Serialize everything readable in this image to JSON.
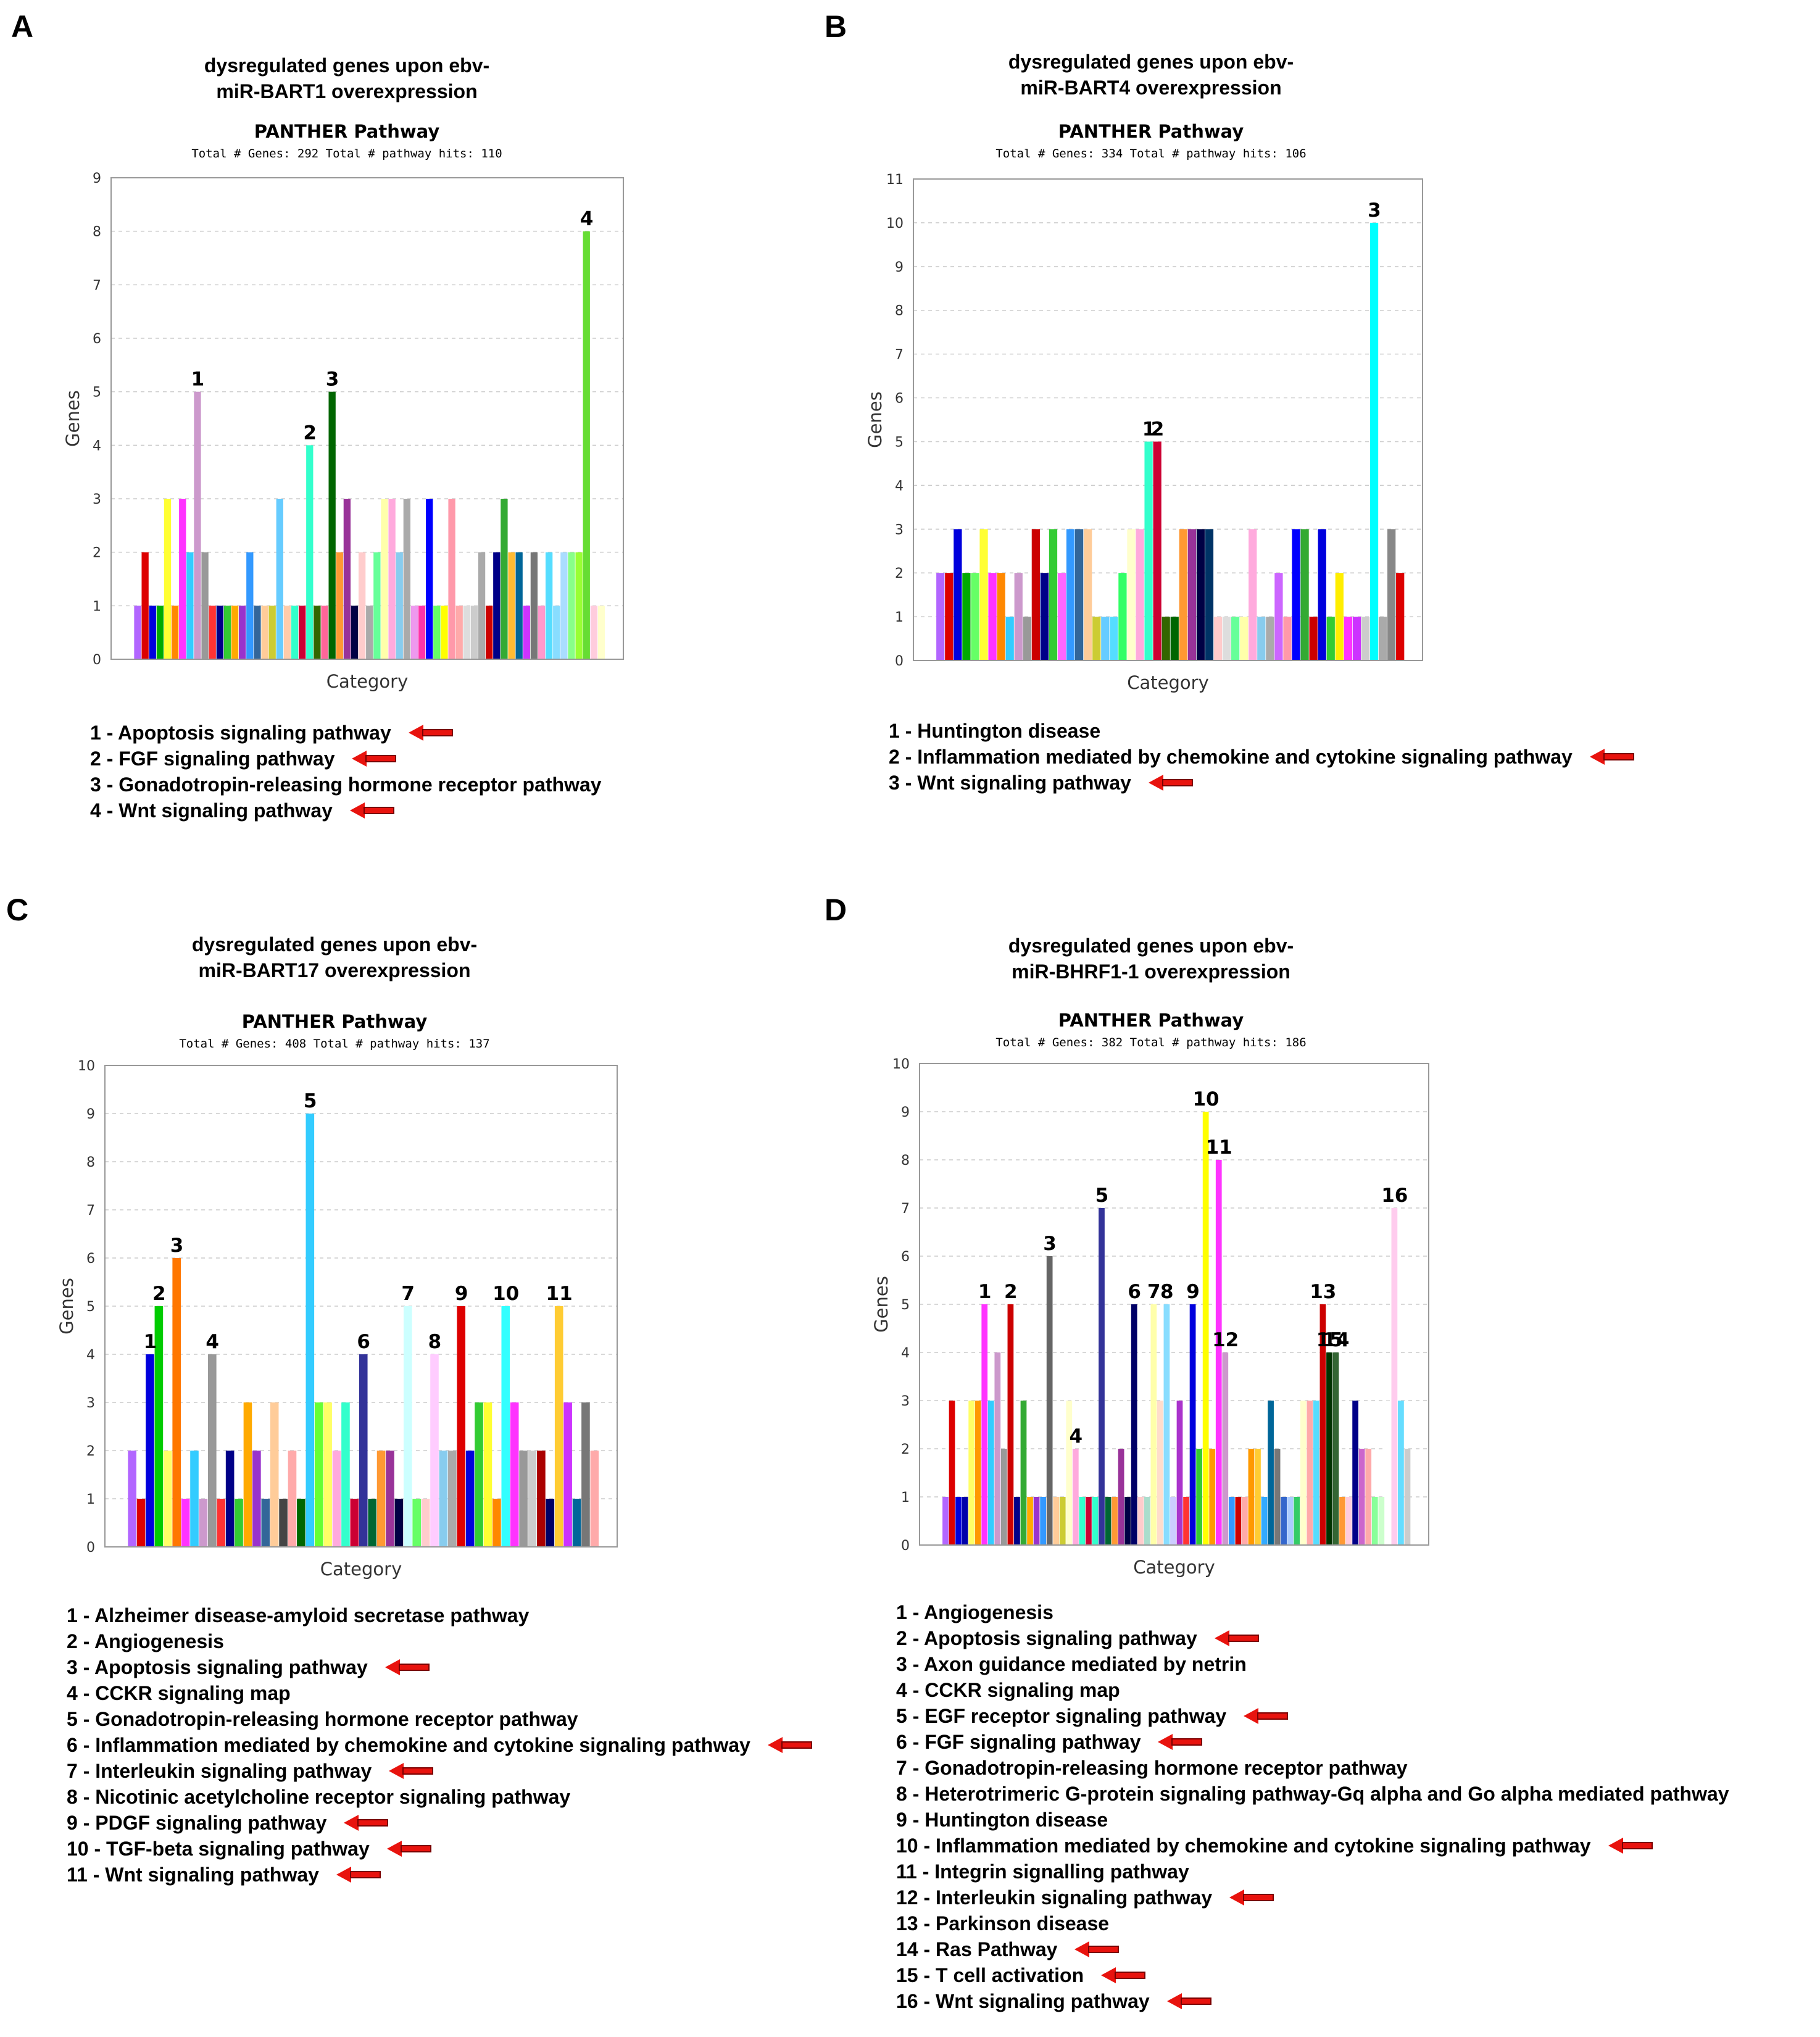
{
  "chart_data": [
    {
      "type": "bar",
      "panel": "A",
      "title_line1": "dysregulated genes upon ebv-",
      "title_line2": "miR-BART1 overexpression",
      "chart_title": "PANTHER Pathway",
      "subtitle": "Total # Genes: 292    Total # pathway hits: 110",
      "xlabel": "Category",
      "ylabel": "Genes",
      "ylim": [
        0,
        9
      ],
      "yticks": [
        "0",
        "1",
        "2",
        "3",
        "4",
        "5",
        "6",
        "7",
        "8",
        "9"
      ],
      "values": [
        1,
        2,
        1,
        1,
        3,
        1,
        3,
        2,
        5,
        2,
        1,
        1,
        1,
        1,
        1,
        2,
        1,
        1,
        1,
        3,
        1,
        1,
        1,
        4,
        1,
        1,
        5,
        2,
        3,
        1,
        2,
        1,
        2,
        3,
        3,
        2,
        3,
        1,
        1,
        3,
        1,
        1,
        3,
        1,
        1,
        1,
        2,
        1,
        2,
        3,
        2,
        2,
        1,
        2,
        1,
        2,
        1,
        2,
        2,
        2,
        8,
        1,
        1
      ],
      "colors": [
        "#b266ff",
        "#dd0000",
        "#0000dd",
        "#00aa00",
        "#ffff33",
        "#ff8800",
        "#ff33ff",
        "#33ccff",
        "#cc99cc",
        "#999999",
        "#ff3333",
        "#000088",
        "#33cc33",
        "#ffaa00",
        "#9933cc",
        "#3399ff",
        "#336699",
        "#ffcc99",
        "#cccc33",
        "#66ccff",
        "#ffccaa",
        "#33ffcc",
        "#cc0033",
        "#33ffcc",
        "#336600",
        "#ff6699",
        "#006600",
        "#ff9933",
        "#993399",
        "#000044",
        "#ffcccc",
        "#aaaaaa",
        "#66ff99",
        "#ffffaa",
        "#ffaadd",
        "#88ccee",
        "#aaaaaa",
        "#ee99ee",
        "#ff33aa",
        "#0000ff",
        "#66ff66",
        "#ffff00",
        "#ff99aa",
        "#ffaaaa",
        "#dddddd",
        "#cccccc",
        "#aaaaaa",
        "#cc0000",
        "#000088",
        "#33aa33",
        "#ffbb33",
        "#006699",
        "#cc33ff",
        "#777777",
        "#ff99cc",
        "#55ddff",
        "#88ddff",
        "#aaddff",
        "#88ff88",
        "#99ff33",
        "#66dd33",
        "#ffccdd",
        "#ffffcc"
      ],
      "annotations": [
        {
          "label": "1",
          "bar": 8
        },
        {
          "label": "2",
          "bar": 23
        },
        {
          "label": "3",
          "bar": 26
        },
        {
          "label": "4",
          "bar": 60
        }
      ],
      "legend": [
        {
          "text": "1 - Apoptosis signaling pathway",
          "arrow": true
        },
        {
          "text": "2 - FGF signaling pathway",
          "arrow": true
        },
        {
          "text": "3 - Gonadotropin-releasing hormone receptor pathway",
          "arrow": false
        },
        {
          "text": "4 - Wnt signaling pathway",
          "arrow": true
        }
      ]
    },
    {
      "type": "bar",
      "panel": "B",
      "title_line1": "dysregulated genes upon ebv-",
      "title_line2": "miR-BART4 overexpression",
      "chart_title": "PANTHER Pathway",
      "subtitle": "Total # Genes: 334    Total # pathway hits: 106",
      "xlabel": "Category",
      "ylabel": "Genes",
      "ylim": [
        0,
        11
      ],
      "yticks": [
        "0",
        "1",
        "2",
        "3",
        "4",
        "5",
        "6",
        "7",
        "8",
        "9",
        "10",
        "11"
      ],
      "values": [
        2,
        2,
        3,
        2,
        2,
        3,
        2,
        2,
        1,
        2,
        1,
        3,
        2,
        3,
        2,
        3,
        3,
        3,
        1,
        1,
        1,
        2,
        3,
        3,
        5,
        5,
        1,
        1,
        3,
        3,
        3,
        3,
        1,
        1,
        1,
        1,
        3,
        1,
        1,
        2,
        1,
        3,
        3,
        1,
        3,
        1,
        2,
        1,
        1,
        1,
        10,
        1,
        3,
        2
      ],
      "colors": [
        "#b266ff",
        "#dd0000",
        "#0000dd",
        "#00aa00",
        "#66ff66",
        "#ffff33",
        "#ff33ff",
        "#ff8800",
        "#33ccff",
        "#cc99cc",
        "#999999",
        "#cc0000",
        "#000088",
        "#33cc33",
        "#ff66ff",
        "#3399ff",
        "#336699",
        "#ffcc99",
        "#cccc33",
        "#66ccff",
        "#55ddff",
        "#33ff66",
        "#ffffcc",
        "#ffaadd",
        "#33ffcc",
        "#cc0033",
        "#336600",
        "#006600",
        "#ff9933",
        "#993399",
        "#000044",
        "#003366",
        "#ffcccc",
        "#dddddd",
        "#66ff99",
        "#ffffaa",
        "#ffaadd",
        "#88ccee",
        "#aaaaaa",
        "#cc66ff",
        "#ff99aa",
        "#0000ff",
        "#33aa33",
        "#cc0000",
        "#0000dd",
        "#33cc33",
        "#ffee00",
        "#ff33ff",
        "#cc33ff",
        "#cccccc",
        "#00ffff",
        "#aaaaaa",
        "#888888",
        "#dd0000"
      ],
      "annotations": [
        {
          "label": "1",
          "bar": 24
        },
        {
          "label": "2",
          "bar": 25
        },
        {
          "label": "3",
          "bar": 50
        }
      ],
      "legend": [
        {
          "text": "1 - Huntington disease",
          "arrow": false
        },
        {
          "text": "2 - Inflammation mediated by chemokine and cytokine signaling pathway",
          "arrow": true
        },
        {
          "text": "3 - Wnt signaling pathway",
          "arrow": true
        }
      ]
    },
    {
      "type": "bar",
      "panel": "C",
      "title_line1": "dysregulated genes upon ebv-",
      "title_line2": "miR-BART17 overexpression",
      "chart_title": "PANTHER Pathway",
      "subtitle": "Total # Genes: 408    Total # pathway hits: 137",
      "xlabel": "Category",
      "ylabel": "Genes",
      "ylim": [
        0,
        10
      ],
      "yticks": [
        "0",
        "1",
        "2",
        "3",
        "4",
        "5",
        "6",
        "7",
        "8",
        "9",
        "10"
      ],
      "values": [
        2,
        1,
        4,
        5,
        2,
        6,
        1,
        2,
        1,
        4,
        1,
        2,
        1,
        3,
        2,
        1,
        3,
        1,
        2,
        1,
        9,
        3,
        3,
        2,
        3,
        1,
        4,
        1,
        2,
        2,
        1,
        5,
        1,
        1,
        4,
        2,
        2,
        5,
        2,
        3,
        3,
        1,
        5,
        3,
        2,
        2,
        2,
        1,
        5,
        3,
        1,
        3,
        2
      ],
      "colors": [
        "#b266ff",
        "#dd0000",
        "#0000dd",
        "#00cc00",
        "#ffff66",
        "#ff7700",
        "#ff33ff",
        "#33ccff",
        "#cc99cc",
        "#999999",
        "#ff3333",
        "#000088",
        "#33cc33",
        "#ffaa00",
        "#9933cc",
        "#336699",
        "#ffcc99",
        "#444444",
        "#ffaaaa",
        "#006600",
        "#33ccff",
        "#66ff33",
        "#ffff66",
        "#ffaadd",
        "#33ffcc",
        "#cc0033",
        "#333399",
        "#006633",
        "#ff9933",
        "#993399",
        "#000044",
        "#ccffff",
        "#66ff66",
        "#ffcccc",
        "#ffccff",
        "#88ccee",
        "#aaaaaa",
        "#dd0000",
        "#0000dd",
        "#33cc33",
        "#ffff33",
        "#ff8800",
        "#33ffff",
        "#ff33ff",
        "#999999",
        "#cccccc",
        "#aa0000",
        "#000066",
        "#ffcc33",
        "#cc33ff",
        "#006699",
        "#777777",
        "#ffaaaa"
      ],
      "annotations": [
        {
          "label": "1",
          "bar": 2
        },
        {
          "label": "2",
          "bar": 3
        },
        {
          "label": "3",
          "bar": 5
        },
        {
          "label": "4",
          "bar": 9
        },
        {
          "label": "5",
          "bar": 20
        },
        {
          "label": "6",
          "bar": 26
        },
        {
          "label": "7",
          "bar": 31
        },
        {
          "label": "8",
          "bar": 34
        },
        {
          "label": "9",
          "bar": 37
        },
        {
          "label": "10",
          "bar": 42
        },
        {
          "label": "11",
          "bar": 48
        }
      ],
      "legend": [
        {
          "text": "1 - Alzheimer disease-amyloid secretase pathway",
          "arrow": false
        },
        {
          "text": "2 - Angiogenesis",
          "arrow": false
        },
        {
          "text": "3 - Apoptosis signaling pathway",
          "arrow": true
        },
        {
          "text": "4 - CCKR signaling map",
          "arrow": false
        },
        {
          "text": "5 - Gonadotropin-releasing hormone receptor pathway",
          "arrow": false
        },
        {
          "text": "6 - Inflammation mediated by chemokine and cytokine signaling pathway",
          "arrow": true
        },
        {
          "text": "7 - Interleukin signaling pathway",
          "arrow": true
        },
        {
          "text": "8 - Nicotinic acetylcholine receptor signaling pathway",
          "arrow": false
        },
        {
          "text": "9 - PDGF signaling pathway",
          "arrow": true
        },
        {
          "text": "10 - TGF-beta signaling pathway",
          "arrow": true
        },
        {
          "text": "11 - Wnt signaling pathway",
          "arrow": true
        }
      ]
    },
    {
      "type": "bar",
      "panel": "D",
      "title_line1": "dysregulated genes upon ebv-",
      "title_line2": "miR-BHRF1-1 overexpression",
      "chart_title": "PANTHER Pathway",
      "subtitle": "Total # Genes: 382    Total # pathway hits: 186",
      "xlabel": "Category",
      "ylabel": "Genes",
      "ylim": [
        0,
        10
      ],
      "yticks": [
        "0",
        "1",
        "2",
        "3",
        "4",
        "5",
        "6",
        "7",
        "8",
        "9",
        "10"
      ],
      "values": [
        1,
        3,
        1,
        1,
        3,
        3,
        5,
        3,
        4,
        2,
        5,
        1,
        3,
        1,
        1,
        1,
        6,
        1,
        1,
        3,
        2,
        1,
        1,
        1,
        7,
        1,
        1,
        2,
        1,
        5,
        1,
        1,
        5,
        3,
        5,
        1,
        3,
        1,
        5,
        2,
        9,
        2,
        8,
        4,
        1,
        1,
        1,
        2,
        2,
        1,
        3,
        2,
        1,
        1,
        1,
        3,
        3,
        3,
        5,
        4,
        4,
        1,
        1,
        3,
        2,
        2,
        1,
        1,
        3,
        7,
        3,
        2
      ],
      "colors": [
        "#b266ff",
        "#dd0000",
        "#0000dd",
        "#0000aa",
        "#ffff66",
        "#ff9900",
        "#ff33ff",
        "#33ccff",
        "#cc99cc",
        "#999999",
        "#cc0000",
        "#000088",
        "#33aa33",
        "#ffaa00",
        "#9933cc",
        "#3399ff",
        "#666666",
        "#ffcc99",
        "#cccc33",
        "#ffffcc",
        "#ffaadd",
        "#33ffcc",
        "#cc0033",
        "#33ffcc",
        "#333399",
        "#006633",
        "#ff9933",
        "#993399",
        "#000044",
        "#000066",
        "#ffcccc",
        "#aaddcc",
        "#ffffaa",
        "#ffddcc",
        "#88ddff",
        "#ccccff",
        "#aa33cc",
        "#ff3333",
        "#0000dd",
        "#33cc33",
        "#ffff00",
        "#ff9900",
        "#ff33ff",
        "#cc99cc",
        "#3399ff",
        "#cc0000",
        "#ffaaaa",
        "#ff9900",
        "#ffcc33",
        "#33aaff",
        "#006699",
        "#777777",
        "#3366cc",
        "#aaccff",
        "#33cc66",
        "#ffffcc",
        "#ffaaaa",
        "#55ddff",
        "#cc0000",
        "#003300",
        "#336633",
        "#ff9933",
        "#ffccdd",
        "#000088",
        "#cc66cc",
        "#ffaaaa",
        "#88ff99",
        "#ccffcc",
        "#ffffff",
        "#ffccee",
        "#66ddff",
        "#cccccc"
      ],
      "annotations": [
        {
          "label": "1",
          "bar": 6
        },
        {
          "label": "2",
          "bar": 10
        },
        {
          "label": "3",
          "bar": 16
        },
        {
          "label": "4",
          "bar": 20
        },
        {
          "label": "5",
          "bar": 24
        },
        {
          "label": "6",
          "bar": 29
        },
        {
          "label": "7",
          "bar": 32
        },
        {
          "label": "8",
          "bar": 34
        },
        {
          "label": "9",
          "bar": 38
        },
        {
          "label": "10",
          "bar": 40
        },
        {
          "label": "11",
          "bar": 42
        },
        {
          "label": "12",
          "bar": 43
        },
        {
          "label": "13",
          "bar": 58
        },
        {
          "label": "14",
          "bar": 60
        },
        {
          "label": "15",
          "bar": 59
        },
        {
          "label": "16",
          "bar": 69
        }
      ],
      "legend": [
        {
          "text": "1 - Angiogenesis",
          "arrow": false
        },
        {
          "text": "2 - Apoptosis signaling pathway",
          "arrow": true
        },
        {
          "text": "3 - Axon guidance mediated by netrin",
          "arrow": false
        },
        {
          "text": "4 - CCKR signaling map",
          "arrow": false
        },
        {
          "text": "5 - EGF receptor signaling pathway",
          "arrow": true
        },
        {
          "text": "6 - FGF signaling pathway",
          "arrow": true
        },
        {
          "text": "7 - Gonadotropin-releasing hormone receptor pathway",
          "arrow": false
        },
        {
          "text": "8 - Heterotrimeric G-protein signaling pathway-Gq alpha and Go alpha mediated pathway",
          "arrow": false
        },
        {
          "text": "9 - Huntington disease",
          "arrow": false
        },
        {
          "text": "10 - Inflammation mediated by chemokine and cytokine signaling pathway",
          "arrow": true
        },
        {
          "text": "11 - Integrin signalling pathway",
          "arrow": false
        },
        {
          "text": "12 - Interleukin signaling pathway",
          "arrow": true
        },
        {
          "text": "13 - Parkinson disease",
          "arrow": false
        },
        {
          "text": "14 - Ras Pathway",
          "arrow": true
        },
        {
          "text": "15 - T cell activation",
          "arrow": true
        },
        {
          "text": "16 - Wnt signaling pathway",
          "arrow": true
        }
      ]
    }
  ],
  "colors": {
    "arrow": "#e8130e",
    "grid": "#cccccc",
    "frame": "#999999"
  }
}
